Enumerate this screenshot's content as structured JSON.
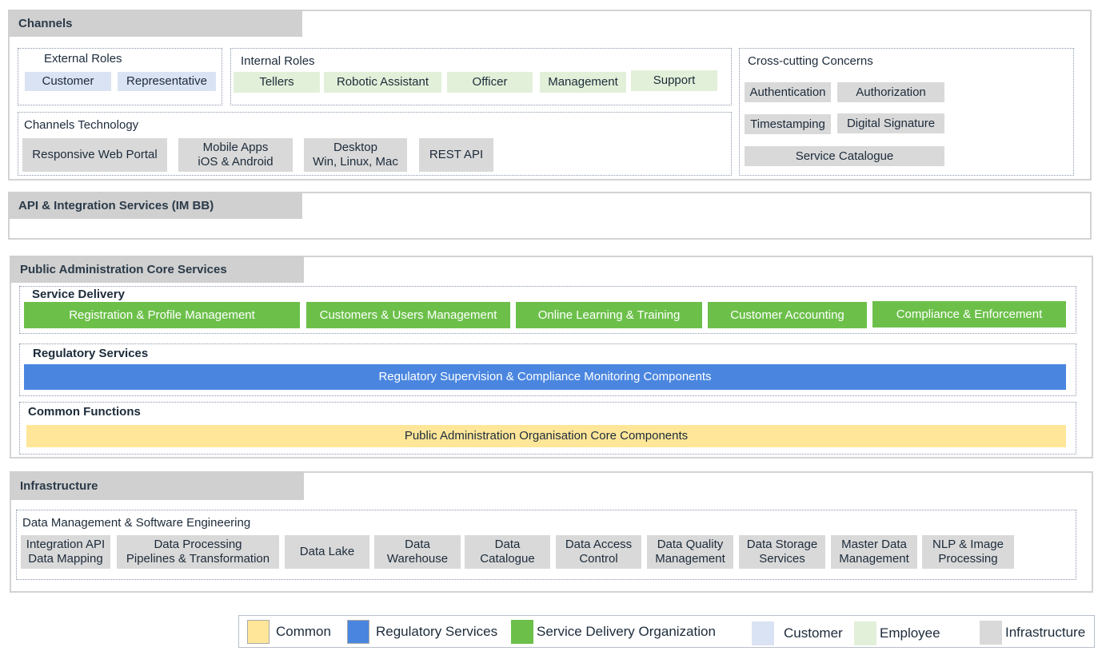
{
  "colors": {
    "common": "#ffe699",
    "regulatory": "#4a86e0",
    "service_delivery": "#6cc04a",
    "customer": "#dae3f3",
    "employee": "#e2f0d9",
    "infrastructure": "#d9d9d9"
  },
  "channels": {
    "title": "Channels",
    "external": {
      "label": "External Roles",
      "items": [
        "Customer",
        "Representative"
      ]
    },
    "internal": {
      "label": "Internal Roles",
      "items": [
        "Tellers",
        "Robotic Assistant",
        "Officer",
        "Management",
        "Support"
      ]
    },
    "technology": {
      "label": "Channels Technology",
      "items": [
        "Responsive Web Portal",
        "Mobile Apps\niOS & Android",
        "Desktop\nWin, Linux, Mac",
        "REST API"
      ]
    },
    "cross": {
      "label": "Cross-cutting Concerns",
      "items": [
        "Authentication",
        "Authorization",
        "Timestamping",
        "Digital Signature",
        "Service Catalogue"
      ]
    }
  },
  "api": {
    "title": "API & Integration Services (IM BB)"
  },
  "core": {
    "title": "Public Administration Core Services",
    "service_delivery": {
      "label": "Service Delivery",
      "items": [
        "Registration & Profile Management",
        "Customers & Users Management",
        "Online Learning & Training",
        "Customer Accounting",
        "Compliance & Enforcement"
      ]
    },
    "regulatory": {
      "label": "Regulatory Services",
      "item": "Regulatory Supervision & Compliance Monitoring Components"
    },
    "common": {
      "label": "Common Functions",
      "item": "Public Administration Organisation Core Components"
    }
  },
  "infrastructure": {
    "title": "Infrastructure",
    "data": {
      "label": "Data Management & Software Engineering",
      "items": [
        "Integration API\nData Mapping",
        "Data Processing\nPipelines & Transformation",
        "Data Lake",
        "Data\nWarehouse",
        "Data\nCatalogue",
        "Data Access\nControl",
        "Data Quality\nManagement",
        "Data Storage\nServices",
        "Master Data\nManagement",
        "NLP & Image\nProcessing"
      ]
    }
  },
  "legend": [
    "Common",
    "Regulatory Services",
    "Service Delivery Organization",
    "Customer",
    "Employee",
    "Infrastructure"
  ]
}
